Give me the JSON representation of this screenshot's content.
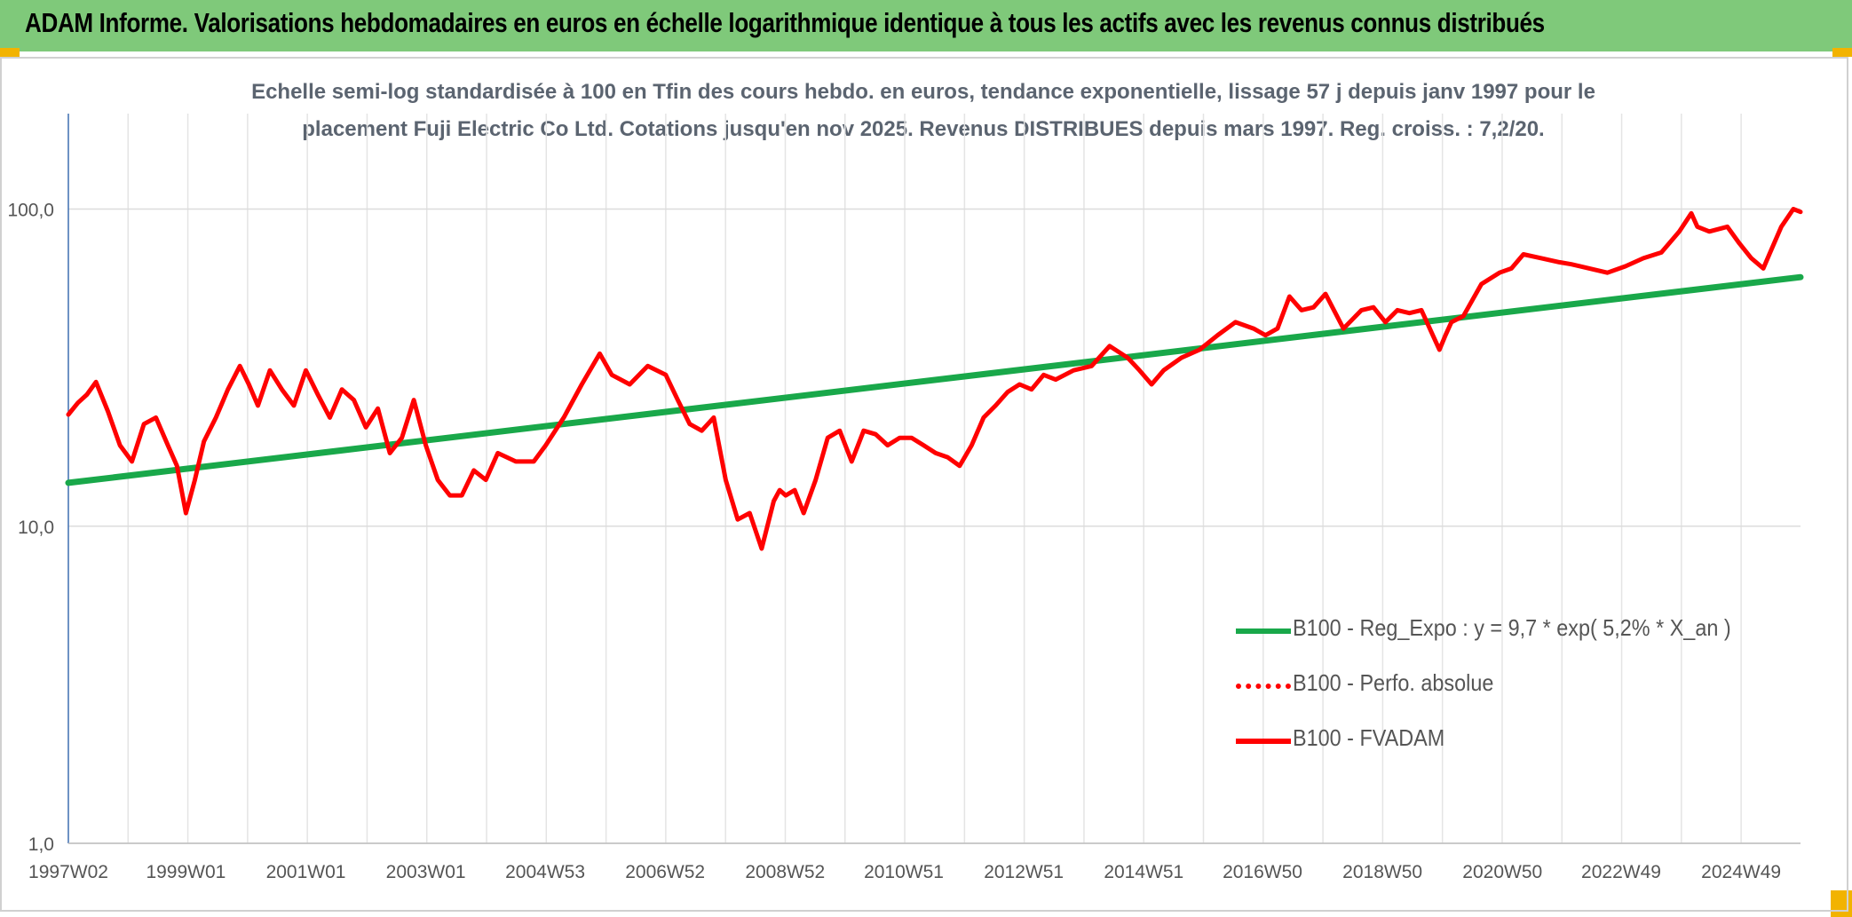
{
  "header": {
    "title": "ADAM Informe. Valorisations hebdomadaires en euros en échelle logarithmique identique à tous les actifs avec les revenus connus distribués"
  },
  "chart_data": {
    "type": "line",
    "title_line1": "Echelle semi-log standardisée à 100 en Tfin des cours hebdo. en euros, tendance exponentielle, lissage 57 j depuis janv 1997 pour le",
    "title_line2": "placement Fuji Electric Co Ltd. Cotations jusqu'en nov 2025. Revenus DISTRIBUES depuis mars 1997. Reg. croiss. : 7,2/20.",
    "y_scale": "log",
    "ylim": [
      1,
      200
    ],
    "xlim": [
      1997.04,
      2025.92
    ],
    "y_ticks": [
      {
        "value": 1,
        "label": "1,0"
      },
      {
        "value": 10,
        "label": "10,0"
      },
      {
        "value": 100,
        "label": "100,0"
      }
    ],
    "x_ticks": [
      {
        "x": 1997.04,
        "label": "1997W02"
      },
      {
        "x": 1999.0,
        "label": "1999W01"
      },
      {
        "x": 2001.0,
        "label": "2001W01"
      },
      {
        "x": 2003.0,
        "label": "2003W01"
      },
      {
        "x": 2004.99,
        "label": "2004W53"
      },
      {
        "x": 2006.99,
        "label": "2006W52"
      },
      {
        "x": 2008.99,
        "label": "2008W52"
      },
      {
        "x": 2010.97,
        "label": "2010W51"
      },
      {
        "x": 2012.97,
        "label": "2012W51"
      },
      {
        "x": 2014.97,
        "label": "2014W51"
      },
      {
        "x": 2016.95,
        "label": "2016W50"
      },
      {
        "x": 2018.95,
        "label": "2018W50"
      },
      {
        "x": 2020.95,
        "label": "2020W50"
      },
      {
        "x": 2022.93,
        "label": "2022W49"
      },
      {
        "x": 2024.93,
        "label": "2024W49"
      }
    ],
    "grid": true,
    "legend_position": "lower-right",
    "series": [
      {
        "name": "B100 - Reg_Expo : y = 9,7 * exp( 5,2% *  X_an )",
        "color": "#19a84a",
        "style": "solid",
        "x": [
          1997.04,
          2025.92
        ],
        "y": [
          13.7,
          61
        ]
      },
      {
        "name": "B100 - Perfo. absolue",
        "color": "#ff0000",
        "style": "dotted",
        "x": [],
        "y": []
      },
      {
        "name": "B100 - FVADAM",
        "color": "#ff0000",
        "style": "solid",
        "x": [
          1997.04,
          1997.2,
          1997.35,
          1997.5,
          1997.7,
          1997.9,
          1998.1,
          1998.3,
          1998.5,
          1998.7,
          1998.85,
          1999.0,
          1999.15,
          1999.3,
          1999.5,
          1999.7,
          1999.9,
          2000.05,
          2000.2,
          2000.4,
          2000.6,
          2000.8,
          2001.0,
          2001.2,
          2001.4,
          2001.6,
          2001.8,
          2002.0,
          2002.2,
          2002.4,
          2002.6,
          2002.8,
          2003.0,
          2003.2,
          2003.4,
          2003.6,
          2003.8,
          2004.0,
          2004.2,
          2004.5,
          2004.8,
          2005.0,
          2005.3,
          2005.6,
          2005.9,
          2006.1,
          2006.4,
          2006.7,
          2007.0,
          2007.2,
          2007.4,
          2007.6,
          2007.8,
          2008.0,
          2008.2,
          2008.4,
          2008.6,
          2008.8,
          2008.9,
          2009.0,
          2009.15,
          2009.3,
          2009.5,
          2009.7,
          2009.9,
          2010.1,
          2010.3,
          2010.5,
          2010.7,
          2010.9,
          2011.1,
          2011.3,
          2011.5,
          2011.7,
          2011.9,
          2012.1,
          2012.3,
          2012.5,
          2012.7,
          2012.9,
          2013.1,
          2013.3,
          2013.5,
          2013.8,
          2014.1,
          2014.4,
          2014.7,
          2014.9,
          2015.1,
          2015.3,
          2015.6,
          2015.9,
          2016.2,
          2016.5,
          2016.8,
          2017.0,
          2017.2,
          2017.4,
          2017.6,
          2017.8,
          2018.0,
          2018.3,
          2018.6,
          2018.8,
          2019.0,
          2019.2,
          2019.4,
          2019.6,
          2019.9,
          2020.0,
          2020.1,
          2020.3,
          2020.6,
          2020.9,
          2021.1,
          2021.3,
          2021.6,
          2021.9,
          2022.1,
          2022.4,
          2022.7,
          2023.0,
          2023.3,
          2023.6,
          2023.9,
          2024.1,
          2024.2,
          2024.4,
          2024.7,
          2024.9,
          2025.1,
          2025.3,
          2025.4,
          2025.6,
          2025.8,
          2025.92
        ],
        "y": [
          22.5,
          24.5,
          26,
          28.5,
          23,
          18,
          16,
          21,
          22,
          18,
          15.5,
          11,
          14,
          18.5,
          22,
          27,
          32,
          28,
          24,
          31,
          27,
          24,
          31,
          26,
          22,
          27,
          25,
          20.5,
          23.5,
          17,
          19,
          25,
          18,
          14,
          12.5,
          12.5,
          15,
          14,
          17,
          16,
          16,
          18,
          22,
          28,
          35,
          30,
          28,
          32,
          30,
          25,
          21,
          20,
          22,
          14,
          10.5,
          11,
          8.5,
          12,
          13,
          12.5,
          13,
          11,
          14,
          19,
          20,
          16,
          20,
          19.5,
          18,
          19,
          19,
          18,
          17,
          16.5,
          15.5,
          18,
          22,
          24,
          26.5,
          28,
          27,
          30,
          29,
          31,
          32,
          37,
          34,
          31,
          28,
          31,
          34,
          36,
          40,
          44,
          42,
          40,
          42,
          53,
          48,
          49,
          54,
          42,
          48,
          49,
          44,
          48,
          47,
          48,
          36,
          40,
          44,
          46,
          58,
          63,
          65,
          72,
          70,
          68,
          67,
          65,
          63,
          66,
          70,
          73,
          85,
          97,
          88,
          85,
          88,
          78,
          70,
          65,
          72,
          88,
          100,
          98
        ]
      }
    ]
  },
  "legend": {
    "items": [
      {
        "label": "B100 - Reg_Expo : y = 9,7 * exp( 5,2% *  X_an )",
        "color": "#19a84a",
        "style": "solid"
      },
      {
        "label": "B100 - Perfo. absolue",
        "color": "#ff0000",
        "style": "dotted"
      },
      {
        "label": "B100 - FVADAM",
        "color": "#ff0000",
        "style": "solid"
      }
    ]
  }
}
